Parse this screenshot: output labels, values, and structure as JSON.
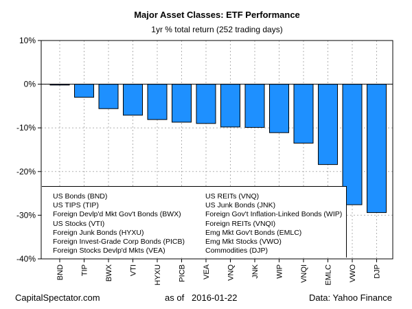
{
  "chart_data": {
    "type": "bar",
    "title": "Major Asset Classes: ETF Performance",
    "subtitle": "1yr % total return (252 trading days)",
    "xlabel": "",
    "ylabel": "",
    "ylim": [
      -40,
      10
    ],
    "yticks": [
      10,
      0,
      -10,
      -20,
      -30,
      -40
    ],
    "ytick_labels": [
      "10%",
      "0%",
      "-10%",
      "-20%",
      "-30%",
      "-40%"
    ],
    "grid": true,
    "bar_color": "#1E90FF",
    "categories": [
      "BND",
      "TIP",
      "BWX",
      "VTI",
      "HYXU",
      "PICB",
      "VEA",
      "VNQ",
      "JNK",
      "WIP",
      "VNQI",
      "EMLC",
      "VWO",
      "DJP"
    ],
    "values": [
      -0.2,
      -3.0,
      -5.6,
      -7.1,
      -8.1,
      -8.7,
      -9.0,
      -9.8,
      -9.9,
      -11.1,
      -13.5,
      -18.4,
      -27.6,
      -29.4
    ],
    "legend": {
      "placement": "bottom-left",
      "left": [
        "US Bonds (BND)",
        "US TIPS (TIP)",
        "Foreign Devlp'd Mkt Gov't Bonds (BWX)",
        "US Stocks (VTI)",
        "Foreign Junk Bonds (HYXU)",
        "Foreign Invest-Grade Corp Bonds (PICB)",
        "Foreign Stocks Devlp'd Mkts (VEA)"
      ],
      "right": [
        "US REITs (VNQ)",
        "US Junk Bonds (JNK)",
        "Foreign Gov't Inflation-Linked Bonds (WIP)",
        "Foreign REITs (VNQI)",
        "Emg Mkt Gov't Bonds (EMLC)",
        "Emg Mkt Stocks (VWO)",
        "Commodities (DJP)"
      ]
    }
  },
  "footer": {
    "source_left": "CapitalSpectator.com",
    "as_of": "as of   2016-01-22",
    "source_right": "Data: Yahoo Finance"
  }
}
